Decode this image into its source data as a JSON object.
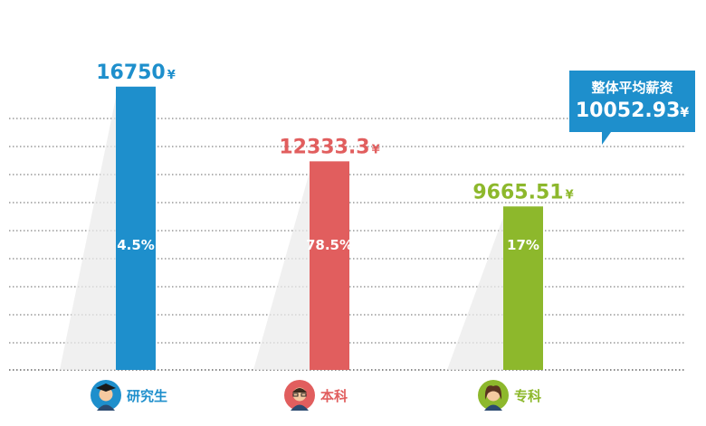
{
  "chart_data": {
    "type": "bar",
    "categories": [
      "研究生",
      "本科",
      "专科"
    ],
    "values": [
      16750,
      12333.3,
      9665.51
    ],
    "value_labels": [
      "16750",
      "12333.3",
      "9665.51"
    ],
    "percent_labels": [
      "4.5%",
      "78.5%",
      "17%"
    ],
    "unit": "¥",
    "colors": [
      "#1e8fcc",
      "#e15e5e",
      "#8db82c"
    ],
    "icons": [
      "graduate-avatar-icon",
      "glasses-avatar-icon",
      "female-avatar-icon"
    ],
    "ylim": [
      0,
      20000
    ],
    "grid": true,
    "summary": {
      "title": "整体平均薪资",
      "value": "10052.93",
      "unit": "¥"
    }
  }
}
